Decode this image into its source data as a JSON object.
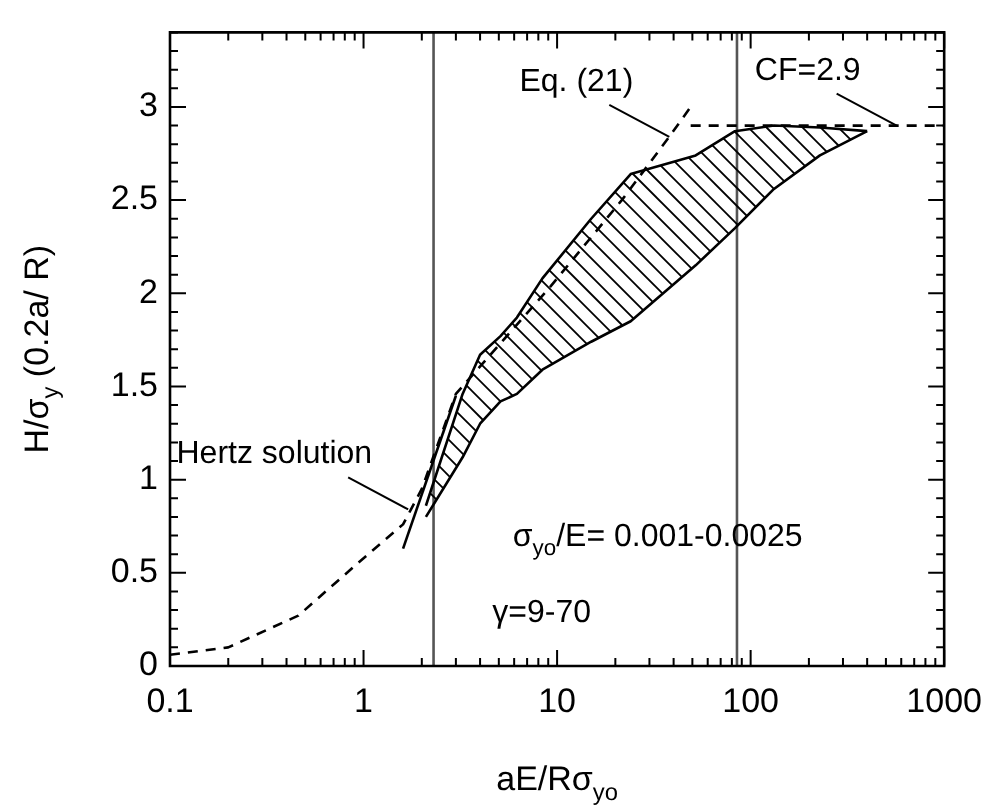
{
  "chart_data": {
    "type": "line",
    "xlabel": "aE/Rσ$_{yo}$",
    "ylabel": "H/σ$_{y}$ (0.2a/ R)",
    "log": "x",
    "xlim": [
      0.1,
      1000
    ],
    "xticks": [
      0.1,
      {
        "value": 0.2,
        "label": null
      },
      {
        "value": 0.3,
        "label": null
      },
      {
        "value": 0.4,
        "label": null
      },
      {
        "value": 0.5,
        "label": null
      },
      {
        "value": 0.6,
        "label": null
      },
      {
        "value": 0.7,
        "label": null
      },
      {
        "value": 0.8,
        "label": null
      },
      {
        "value": 0.9,
        "label": null
      },
      1,
      {
        "value": 2,
        "label": null
      },
      {
        "value": 3,
        "label": null
      },
      {
        "value": 4,
        "label": null
      },
      {
        "value": 5,
        "label": null
      },
      {
        "value": 6,
        "label": null
      },
      {
        "value": 7,
        "label": null
      },
      {
        "value": 8,
        "label": null
      },
      {
        "value": 9,
        "label": null
      },
      10,
      {
        "value": 20,
        "label": null
      },
      {
        "value": 30,
        "label": null
      },
      {
        "value": 40,
        "label": null
      },
      {
        "value": 50,
        "label": null
      },
      {
        "value": 60,
        "label": null
      },
      {
        "value": 70,
        "label": null
      },
      {
        "value": 80,
        "label": null
      },
      {
        "value": 90,
        "label": null
      },
      100,
      {
        "value": 200,
        "label": null
      },
      {
        "value": 300,
        "label": null
      },
      {
        "value": 400,
        "label": null
      },
      {
        "value": 500,
        "label": null
      },
      {
        "value": 600,
        "label": null
      },
      {
        "value": 700,
        "label": null
      },
      {
        "value": 800,
        "label": null
      },
      {
        "value": 900,
        "label": null
      },
      1000
    ],
    "ylim": [
      0,
      3.4
    ],
    "yticks": [
      0,
      {
        "value": 0.1,
        "label": null
      },
      {
        "value": 0.2,
        "label": null
      },
      {
        "value": 0.3,
        "label": null
      },
      {
        "value": 0.4,
        "label": null
      },
      0.5,
      {
        "value": 0.6,
        "label": null
      },
      {
        "value": 0.7,
        "label": null
      },
      {
        "value": 0.8,
        "label": null
      },
      {
        "value": 0.9,
        "label": null
      },
      1,
      {
        "value": 1.1,
        "label": null
      },
      {
        "value": 1.2,
        "label": null
      },
      {
        "value": 1.3,
        "label": null
      },
      {
        "value": 1.4,
        "label": null
      },
      1.5,
      {
        "value": 1.6,
        "label": null
      },
      {
        "value": 1.7,
        "label": null
      },
      {
        "value": 1.8,
        "label": null
      },
      {
        "value": 1.9,
        "label": null
      },
      2,
      {
        "value": 2.1,
        "label": null
      },
      {
        "value": 2.2,
        "label": null
      },
      {
        "value": 2.3,
        "label": null
      },
      {
        "value": 2.4,
        "label": null
      },
      2.5,
      {
        "value": 2.6,
        "label": null
      },
      {
        "value": 2.7,
        "label": null
      },
      {
        "value": 2.8,
        "label": null
      },
      {
        "value": 2.9,
        "label": null
      },
      3,
      {
        "value": 3.1,
        "label": null
      },
      {
        "value": 3.2,
        "label": null
      },
      {
        "value": 3.3,
        "label": null
      },
      {
        "value": 3.4,
        "label": null
      }
    ],
    "grid": false,
    "series": [
      {
        "type": "line",
        "color": "#000000",
        "line_style": "dashed",
        "x": [
          0.1,
          0.2,
          0.46,
          0.93,
          1.6,
          2.0,
          3.0,
          9.3,
          21.6,
          38,
          49
        ],
        "values": [
          0.06,
          0.1,
          0.27,
          0.55,
          0.76,
          0.95,
          1.46,
          2.04,
          2.5,
          2.84,
          3.0
        ]
      },
      {
        "type": "line",
        "color": "#000000",
        "line_style": "dashed",
        "x": [
          49,
          1000
        ],
        "values": [
          2.9,
          2.9
        ]
      },
      {
        "type": "line",
        "color": "#000000",
        "line_style": "solid",
        "x": [
          1.6,
          3.0
        ],
        "values": [
          0.63,
          1.45
        ]
      },
      {
        "type": "line",
        "color": "#000000",
        "x": [
          2.1,
          3.25,
          4.0,
          5.1,
          6.2,
          8.4,
          15,
          24,
          52,
          83,
          132,
          228,
          400
        ],
        "values": [
          0.86,
          1.46,
          1.67,
          1.77,
          1.87,
          2.08,
          2.4,
          2.64,
          2.74,
          2.87,
          2.9,
          2.89,
          2.87
        ]
      },
      {
        "type": "line",
        "color": "#000000",
        "x": [
          2.1,
          3.25,
          4.0,
          5.1,
          6.2,
          8.4,
          15,
          24,
          52,
          83,
          132,
          228,
          400
        ],
        "values": [
          0.8,
          1.12,
          1.3,
          1.42,
          1.46,
          1.59,
          1.74,
          1.85,
          2.15,
          2.35,
          2.56,
          2.74,
          2.87
        ]
      }
    ],
    "ref_lines": [
      {
        "axis": "x",
        "value": 2.3,
        "color": "#555555"
      },
      {
        "axis": "x",
        "value": 85,
        "color": "#555555"
      }
    ],
    "annotations": [
      {
        "text": "Hertz solution",
        "x": 1.7,
        "y": 0.84
      },
      {
        "text": "Eq. (21)",
        "x": 38,
        "y": 2.84
      },
      {
        "text": "CF=2.9",
        "x": 568,
        "y": 2.9
      },
      "σ$_{yo}$/E= 0.001-0.0025",
      "γ=9-70"
    ]
  }
}
